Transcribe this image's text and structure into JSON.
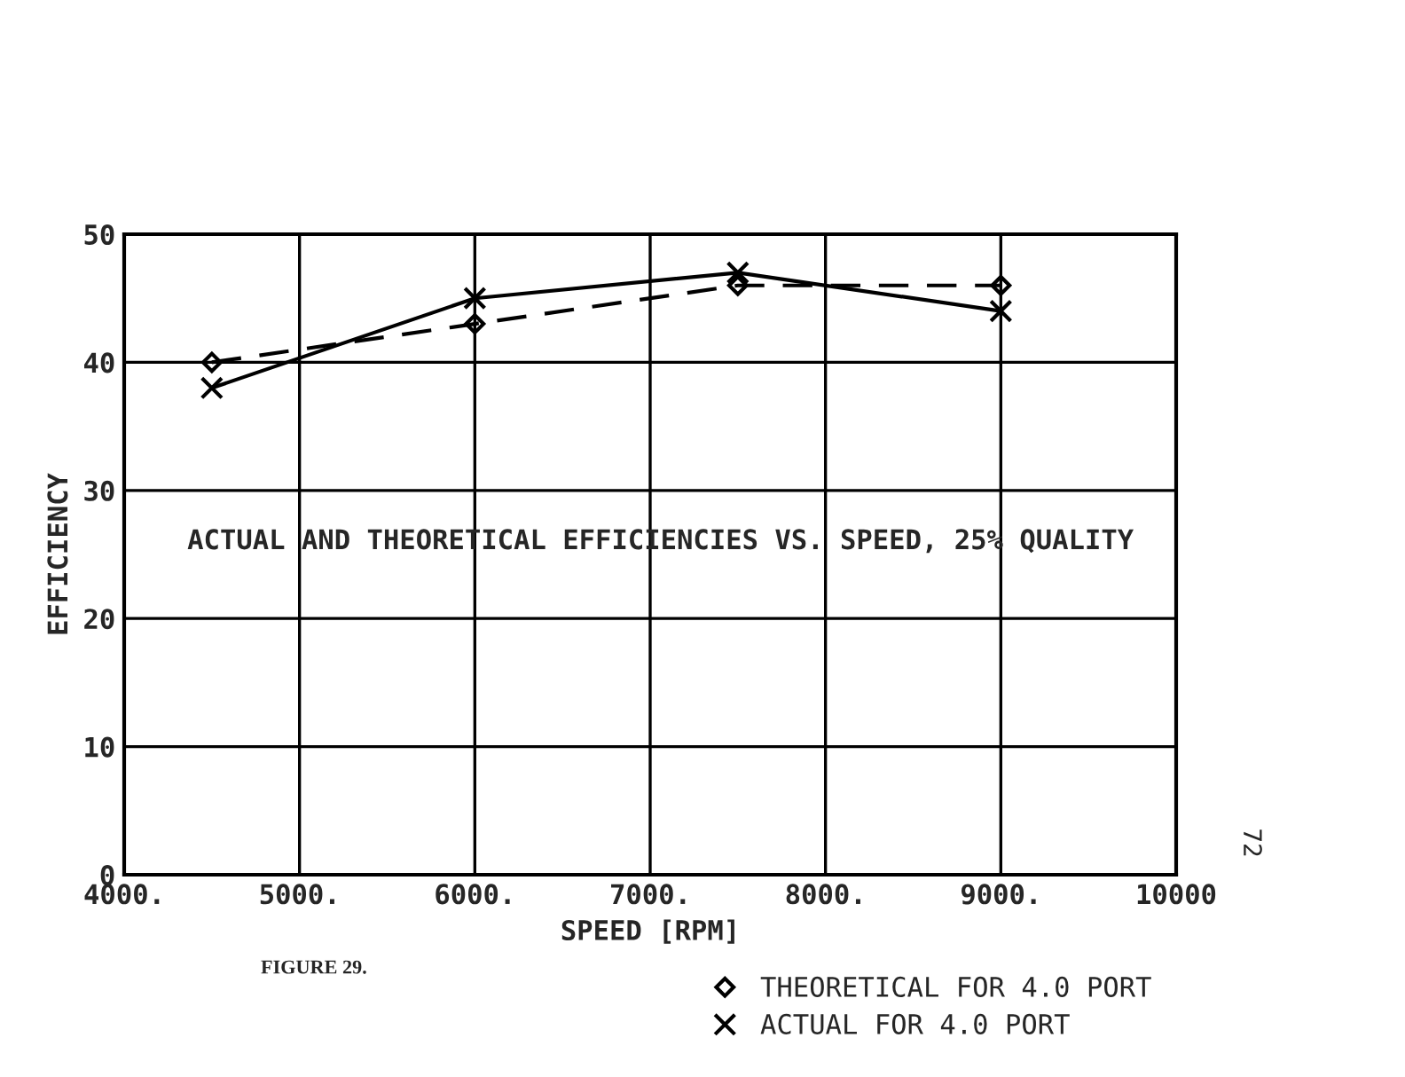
{
  "chart_data": {
    "type": "line",
    "title": "ACTUAL AND THEORETICAL EFFICIENCIES VS. SPEED, 25% QUALITY",
    "xlabel": "SPEED [RPM]",
    "ylabel": "EFFICIENCY",
    "x": [
      4500,
      6000,
      7500,
      9000
    ],
    "series": [
      {
        "name": "THEORETICAL FOR 4.0 PORT",
        "color": "#000000",
        "marker": "diamond",
        "line_style": "dashed",
        "values": [
          40,
          43,
          46,
          46
        ]
      },
      {
        "name": "ACTUAL FOR 4.0 PORT",
        "color": "#000000",
        "marker": "cross",
        "line_style": "solid",
        "values": [
          38,
          45,
          47,
          44
        ]
      }
    ],
    "xlim": [
      4000,
      10000
    ],
    "ylim": [
      0,
      50
    ],
    "xticks": [
      {
        "value": 4000,
        "label": "4000."
      },
      {
        "value": 5000,
        "label": "5000."
      },
      {
        "value": 6000,
        "label": "6000."
      },
      {
        "value": 7000,
        "label": "7000."
      },
      {
        "value": 8000,
        "label": "8000."
      },
      {
        "value": 9000,
        "label": "9000."
      },
      10000
    ],
    "yticks": [
      0,
      10,
      20,
      30,
      40,
      50
    ],
    "grid": true,
    "legend": "bottom right",
    "annotations": [
      "FIGURE 29.",
      "72"
    ]
  }
}
